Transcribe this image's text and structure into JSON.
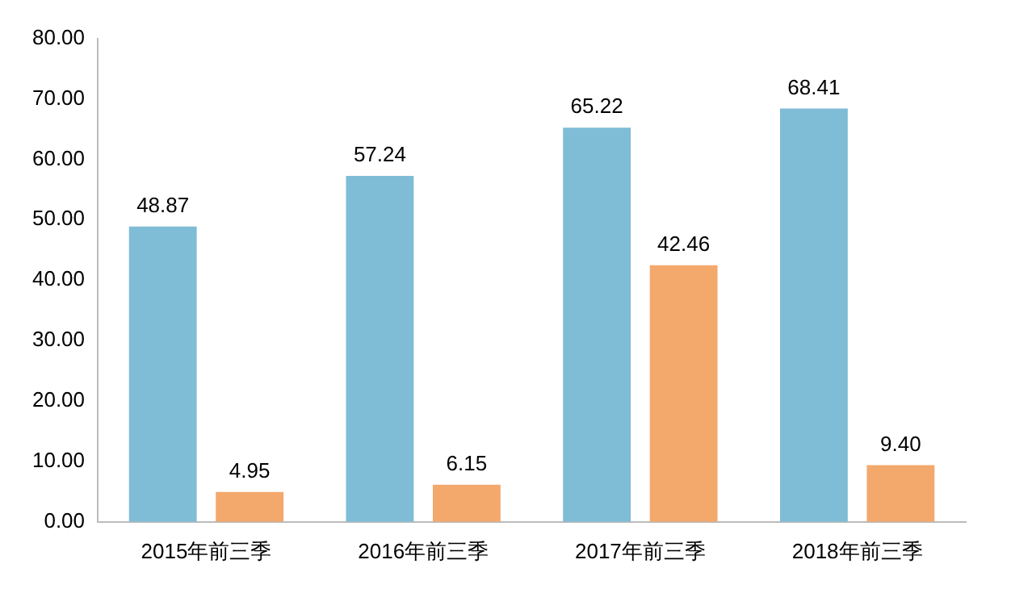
{
  "chart_data": {
    "type": "bar",
    "categories": [
      "2015年前三季",
      "2016年前三季",
      "2017年前三季",
      "2018年前三季"
    ],
    "series": [
      {
        "color": "#7fbcd6",
        "values": [
          48.87,
          57.24,
          65.22,
          68.41
        ],
        "value_labels": [
          "48.87",
          "57.24",
          "65.22",
          "68.41"
        ]
      },
      {
        "color": "#f3a86c",
        "values": [
          4.95,
          6.15,
          42.46,
          9.4
        ],
        "value_labels": [
          "4.95",
          "6.15",
          "42.46",
          "9.40"
        ]
      }
    ],
    "ylim": [
      0,
      80
    ],
    "yticks": [
      {
        "value": 0,
        "label": "0.00"
      },
      {
        "value": 10,
        "label": "10.00"
      },
      {
        "value": 20,
        "label": "20.00"
      },
      {
        "value": 30,
        "label": "30.00"
      },
      {
        "value": 40,
        "label": "40.00"
      },
      {
        "value": 50,
        "label": "50.00"
      },
      {
        "value": 60,
        "label": "60.00"
      },
      {
        "value": 70,
        "label": "70.00"
      },
      {
        "value": 80,
        "label": "80.00"
      }
    ],
    "grid": false,
    "legend": false
  }
}
